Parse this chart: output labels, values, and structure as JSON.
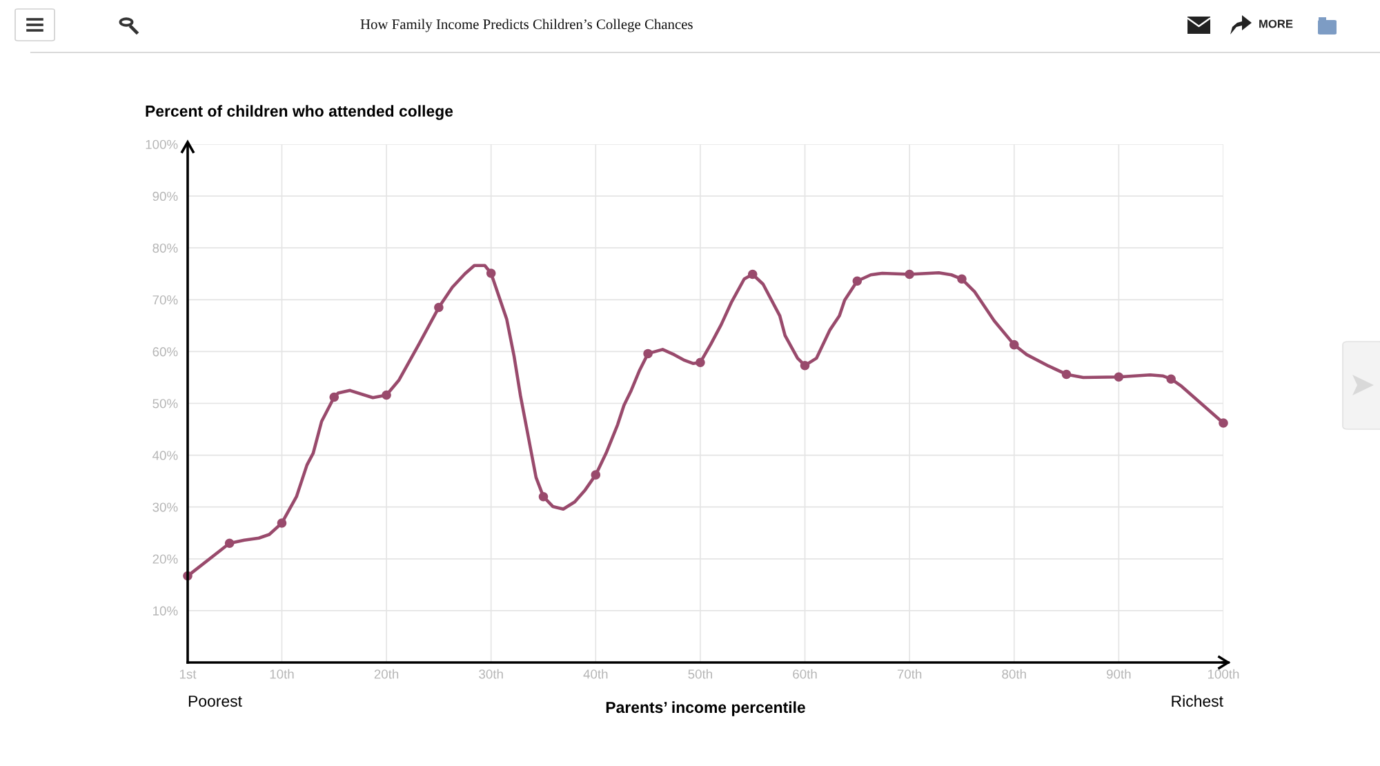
{
  "chart_data": {
    "type": "line",
    "title": "How Family Income Predicts Children’s College Chances",
    "ylabel": "Percent of children who attended college",
    "xlabel": "Parents’ income percentile",
    "annotations": [
      "Poorest",
      "Richest",
      "MORE"
    ],
    "xlim": [
      1,
      100
    ],
    "xticks": [
      {
        "value": 1,
        "label": "1st"
      },
      {
        "value": 10,
        "label": "10th"
      },
      {
        "value": 20,
        "label": "20th"
      },
      {
        "value": 30,
        "label": "30th"
      },
      {
        "value": 40,
        "label": "40th"
      },
      {
        "value": 50,
        "label": "50th"
      },
      {
        "value": 60,
        "label": "60th"
      },
      {
        "value": 70,
        "label": "70th"
      },
      {
        "value": 80,
        "label": "80th"
      },
      {
        "value": 90,
        "label": "90th"
      },
      {
        "value": 100,
        "label": "100th"
      }
    ],
    "ylim": [
      0,
      100
    ],
    "yticks": [
      {
        "value": 10,
        "label": "10%"
      },
      {
        "value": 20,
        "label": "20%"
      },
      {
        "value": 30,
        "label": "30%"
      },
      {
        "value": 40,
        "label": "40%"
      },
      {
        "value": 50,
        "label": "50%"
      },
      {
        "value": 60,
        "label": "60%"
      },
      {
        "value": 70,
        "label": "70%"
      },
      {
        "value": 80,
        "label": "80%"
      },
      {
        "value": 90,
        "label": "90%"
      },
      {
        "value": 100,
        "label": "100%"
      }
    ],
    "grid": true,
    "line_style": "solid",
    "series": [
      {
        "color": "#994a6c",
        "marker": "none",
        "x": [
          1,
          5,
          6.4,
          7.8,
          8.8,
          10,
          11.4,
          12.4,
          13.0,
          13.8,
          15,
          15.4,
          16.5,
          18.7,
          20,
          21.2,
          23.1,
          25,
          26.3,
          27.5,
          28.4,
          29.4,
          30,
          31.5,
          32.2,
          32.8,
          33.5,
          34.3,
          35,
          35.9,
          36.9,
          38,
          39,
          40,
          41,
          42.1,
          42.7,
          43.4,
          44.2,
          45,
          46.4,
          47.5,
          48.5,
          49.3,
          50,
          51,
          52,
          53,
          54.2,
          55,
          56,
          57.6,
          58.1,
          59.3,
          60,
          61.1,
          62.4,
          63.3,
          63.8,
          65,
          66.3,
          67.4,
          70,
          72.8,
          74,
          75,
          76.2,
          78.1,
          80,
          81.2,
          83.3,
          85,
          86.6,
          90,
          93,
          94.2,
          95,
          96,
          100
        ],
        "values": [
          16.7,
          23.0,
          23.6,
          24.0,
          24.7,
          26.9,
          32.0,
          38.1,
          40.4,
          46.5,
          51.2,
          52.0,
          52.5,
          51.1,
          51.6,
          54.5,
          61.4,
          68.5,
          72.4,
          75.0,
          76.6,
          76.6,
          75.1,
          66.2,
          59.1,
          51.6,
          44.2,
          35.7,
          32.0,
          30.1,
          29.6,
          31.0,
          33.3,
          36.2,
          40.4,
          45.9,
          49.6,
          52.5,
          56.4,
          59.6,
          60.4,
          59.4,
          58.3,
          57.7,
          57.9,
          61.4,
          65.2,
          69.6,
          74.0,
          74.9,
          73.0,
          66.9,
          63.1,
          58.7,
          57.3,
          58.7,
          64.2,
          66.9,
          69.9,
          73.6,
          74.8,
          75.1,
          74.9,
          75.2,
          74.8,
          74.0,
          71.6,
          65.9,
          61.3,
          59.4,
          57.2,
          55.6,
          55.0,
          55.1,
          55.5,
          55.3,
          54.7,
          53.3,
          46.2
        ]
      },
      {
        "type": "scatter",
        "color": "#994a6c",
        "marker": "circle",
        "x": [
          1,
          5,
          10,
          15,
          20,
          25,
          30,
          35,
          40,
          45,
          50,
          55,
          60,
          65,
          70,
          75,
          80,
          85,
          90,
          95,
          100
        ],
        "values": [
          16.7,
          23.0,
          26.9,
          51.2,
          51.6,
          68.5,
          75.1,
          32.0,
          36.2,
          59.6,
          57.9,
          74.9,
          57.3,
          73.6,
          74.9,
          74.0,
          61.3,
          55.6,
          55.1,
          54.7,
          46.2
        ]
      }
    ]
  }
}
